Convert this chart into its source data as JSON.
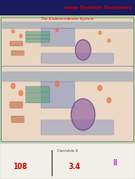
{
  "title": "rane System Summary",
  "subtitle": "The Endomembrane System",
  "bg_color": "#b8c88a",
  "title_color": "#cc0000",
  "title_bg": "#1a1a5e",
  "subtitle_color": "#cc0000",
  "cell_bg1": "#f0d8c8",
  "nucleus_color": "#9060a0",
  "golgi_color": "#60a080",
  "er_color": "#8090c0",
  "vesicle_color": "#e87040",
  "membrane_color": "#7090b0",
  "bottom_panel_bg": "#f0f0e8",
  "bottom_text_color": "#cc0000",
  "bottom_text2_color": "#cc44cc"
}
